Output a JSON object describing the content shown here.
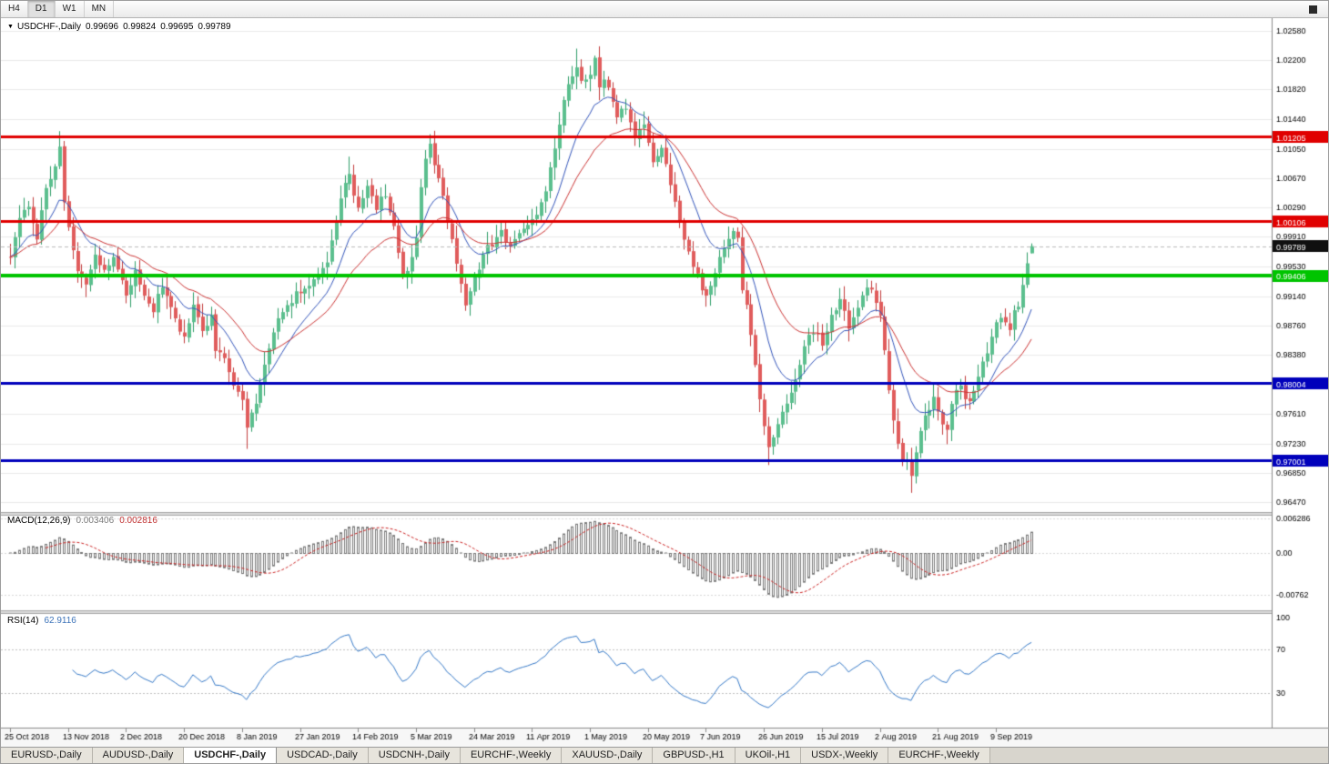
{
  "toolbar": {
    "timeframes": [
      {
        "label": "H4",
        "active": false
      },
      {
        "label": "D1",
        "active": true
      },
      {
        "label": "W1",
        "active": false
      },
      {
        "label": "MN",
        "active": false
      }
    ]
  },
  "chart": {
    "title": {
      "dropdown_icon": "▼",
      "symbol": "USDCHF-,Daily",
      "open": "0.99696",
      "high": "0.99824",
      "low": "0.99695",
      "close": "0.99789"
    }
  },
  "indicators": {
    "macd": {
      "name": "MACD(12,26,9)",
      "main_value": "0.003406",
      "signal_value": "0.002816"
    },
    "rsi": {
      "name": "RSI(14)",
      "value": "62.9116"
    }
  },
  "tabs": {
    "items": [
      {
        "label": "EURUSD-,Daily",
        "active": false
      },
      {
        "label": "AUDUSD-,Daily",
        "active": false
      },
      {
        "label": "USDCHF-,Daily",
        "active": true
      },
      {
        "label": "USDCAD-,Daily",
        "active": false
      },
      {
        "label": "USDCNH-,Daily",
        "active": false
      },
      {
        "label": "EURCHF-,Weekly",
        "active": false
      },
      {
        "label": "XAUUSD-,Daily",
        "active": false
      },
      {
        "label": "GBPUSD-,H1",
        "active": false
      },
      {
        "label": "UKOil-,H1",
        "active": false
      },
      {
        "label": "USDX-,Weekly",
        "active": false
      },
      {
        "label": "EURCHF-,Weekly",
        "active": false
      }
    ]
  },
  "chart_data": {
    "type": "candlestick",
    "symbol": "USDCHF",
    "period": "Daily",
    "price_axis": {
      "top_price": 1.0258,
      "bottom_price": 0.9647,
      "ticks": [
        {
          "p": 1.0258,
          "label": "1.02580"
        },
        {
          "p": 1.022,
          "label": "1.02200"
        },
        {
          "p": 1.0182,
          "label": "1.01820"
        },
        {
          "p": 1.0144,
          "label": "1.01440"
        },
        {
          "p": 1.0105,
          "label": "1.01050"
        },
        {
          "p": 1.0067,
          "label": "1.00670"
        },
        {
          "p": 1.0029,
          "label": "1.00290"
        },
        {
          "p": 0.9991,
          "label": "0.99910"
        },
        {
          "p": 0.9953,
          "label": "0.99530"
        },
        {
          "p": 0.9914,
          "label": "0.99140"
        },
        {
          "p": 0.9876,
          "label": "0.98760"
        },
        {
          "p": 0.9838,
          "label": "0.98380"
        },
        {
          "p": 0.9761,
          "label": "0.97610"
        },
        {
          "p": 0.9723,
          "label": "0.97230"
        },
        {
          "p": 0.9685,
          "label": "0.96850"
        },
        {
          "p": 0.9647,
          "label": "0.96470"
        }
      ]
    },
    "date_axis": [
      {
        "i": 0,
        "label": "25 Oct 2018"
      },
      {
        "i": 13,
        "label": "13 Nov 2018"
      },
      {
        "i": 26,
        "label": "2 Dec 2018"
      },
      {
        "i": 39,
        "label": "20 Dec 2018"
      },
      {
        "i": 52,
        "label": "8 Jan 2019"
      },
      {
        "i": 65,
        "label": "27 Jan 2019"
      },
      {
        "i": 78,
        "label": "14 Feb 2019"
      },
      {
        "i": 91,
        "label": "5 Mar 2019"
      },
      {
        "i": 104,
        "label": "24 Mar 2019"
      },
      {
        "i": 117,
        "label": "11 Apr 2019"
      },
      {
        "i": 130,
        "label": "1 May 2019"
      },
      {
        "i": 143,
        "label": "20 May 2019"
      },
      {
        "i": 156,
        "label": "7 Jun 2019"
      },
      {
        "i": 169,
        "label": "26 Jun 2019"
      },
      {
        "i": 182,
        "label": "15 Jul 2019"
      },
      {
        "i": 195,
        "label": "2 Aug 2019"
      },
      {
        "i": 208,
        "label": "21 Aug 2019"
      },
      {
        "i": 221,
        "label": "9 Sep 2019"
      }
    ],
    "levels": [
      {
        "price": 1.01205,
        "label": "1.01205",
        "color": "#e00000",
        "width": 3
      },
      {
        "price": 1.00106,
        "label": "1.00106",
        "color": "#e00000",
        "width": 3
      },
      {
        "price": 0.99406,
        "label": "0.99406",
        "color": "#00c400",
        "width": 4
      },
      {
        "price": 0.98004,
        "label": "0.98004",
        "color": "#0000bb",
        "width": 3
      },
      {
        "price": 0.97001,
        "label": "0.97001",
        "color": "#0000bb",
        "width": 3
      }
    ],
    "current_price": {
      "value": 0.99789,
      "label": "0.99789"
    },
    "candles": {
      "count": 230,
      "last": {
        "open": 0.99696,
        "high": 0.99824,
        "low": 0.99695,
        "close": 0.99789
      },
      "wick_overrides": {
        "11": {
          "h": 1.0128
        },
        "53": {
          "l": 0.9716
        },
        "76": {
          "h": 1.0095
        },
        "94": {
          "h": 1.0124
        },
        "102": {
          "l": 0.9895
        },
        "127": {
          "h": 1.0235
        },
        "131": {
          "h": 1.0226
        },
        "170": {
          "l": 0.9695
        },
        "202": {
          "l": 0.9659
        },
        "210": {
          "l": 0.9722
        }
      },
      "anchors": [
        [
          0,
          0.9965
        ],
        [
          2,
          1.001
        ],
        [
          4,
          1.0035
        ],
        [
          6,
          0.999
        ],
        [
          8,
          1.005
        ],
        [
          10,
          1.008
        ],
        [
          11,
          1.0105
        ],
        [
          12,
          1.004
        ],
        [
          13,
          1.0
        ],
        [
          15,
          0.995
        ],
        [
          17,
          0.993
        ],
        [
          19,
          0.9965
        ],
        [
          21,
          0.9945
        ],
        [
          23,
          0.997
        ],
        [
          25,
          0.9935
        ],
        [
          26,
          0.9915
        ],
        [
          28,
          0.9945
        ],
        [
          30,
          0.991
        ],
        [
          32,
          0.9895
        ],
        [
          34,
          0.993
        ],
        [
          36,
          0.99
        ],
        [
          38,
          0.987
        ],
        [
          39,
          0.9865
        ],
        [
          41,
          0.99
        ],
        [
          43,
          0.987
        ],
        [
          45,
          0.989
        ],
        [
          46,
          0.9845
        ],
        [
          48,
          0.9835
        ],
        [
          50,
          0.98
        ],
        [
          52,
          0.978
        ],
        [
          53,
          0.9745
        ],
        [
          54,
          0.976
        ],
        [
          56,
          0.98
        ],
        [
          58,
          0.985
        ],
        [
          60,
          0.9885
        ],
        [
          62,
          0.99
        ],
        [
          64,
          0.9915
        ],
        [
          65,
          0.992
        ],
        [
          67,
          0.993
        ],
        [
          69,
          0.9945
        ],
        [
          71,
          0.996
        ],
        [
          72,
          0.999
        ],
        [
          73,
          1.0015
        ],
        [
          74,
          1.004
        ],
        [
          75,
          1.006
        ],
        [
          76,
          1.007
        ],
        [
          77,
          1.0045
        ],
        [
          78,
          1.0025
        ],
        [
          79,
          1.004
        ],
        [
          80,
          1.0055
        ],
        [
          81,
          1.004
        ],
        [
          82,
          1.003
        ],
        [
          83,
          1.0045
        ],
        [
          84,
          1.004
        ],
        [
          85,
          1.0025
        ],
        [
          86,
          1.0005
        ],
        [
          87,
          0.9975
        ],
        [
          88,
          0.994
        ],
        [
          89,
          0.995
        ],
        [
          90,
          0.996
        ],
        [
          91,
          0.9985
        ],
        [
          92,
          1.005
        ],
        [
          93,
          1.009
        ],
        [
          94,
          1.0115
        ],
        [
          95,
          1.0085
        ],
        [
          96,
          1.007
        ],
        [
          97,
          1.004
        ],
        [
          98,
          1.001
        ],
        [
          99,
          0.9985
        ],
        [
          100,
          0.996
        ],
        [
          101,
          0.993
        ],
        [
          102,
          0.9905
        ],
        [
          103,
          0.992
        ],
        [
          104,
          0.9935
        ],
        [
          105,
          0.995
        ],
        [
          106,
          0.9965
        ],
        [
          107,
          0.9975
        ],
        [
          109,
          0.999
        ],
        [
          110,
          0.9995
        ],
        [
          112,
          0.998
        ],
        [
          114,
          0.9995
        ],
        [
          116,
          1.001
        ],
        [
          118,
          1.0025
        ],
        [
          119,
          1.0035
        ],
        [
          120,
          1.0055
        ],
        [
          121,
          1.008
        ],
        [
          122,
          1.011
        ],
        [
          123,
          1.014
        ],
        [
          124,
          1.0165
        ],
        [
          125,
          1.0185
        ],
        [
          126,
          1.02
        ],
        [
          127,
          1.0215
        ],
        [
          128,
          1.019
        ],
        [
          129,
          1.02
        ],
        [
          130,
          1.0205
        ],
        [
          131,
          1.022
        ],
        [
          132,
          1.018
        ],
        [
          133,
          1.0195
        ],
        [
          134,
          1.019
        ],
        [
          135,
          1.017
        ],
        [
          136,
          1.0145
        ],
        [
          137,
          1.0155
        ],
        [
          138,
          1.016
        ],
        [
          139,
          1.014
        ],
        [
          140,
          1.012
        ],
        [
          141,
          1.013
        ],
        [
          142,
          1.0135
        ],
        [
          143,
          1.011
        ],
        [
          144,
          1.009
        ],
        [
          145,
          1.01
        ],
        [
          146,
          1.0105
        ],
        [
          147,
          1.008
        ],
        [
          148,
          1.006
        ],
        [
          149,
          1.0035
        ],
        [
          150,
          1.001
        ],
        [
          151,
          0.999
        ],
        [
          152,
          0.9975
        ],
        [
          153,
          0.9955
        ],
        [
          154,
          0.994
        ],
        [
          155,
          0.9925
        ],
        [
          156,
          0.991
        ],
        [
          157,
          0.9925
        ],
        [
          158,
          0.9945
        ],
        [
          159,
          0.996
        ],
        [
          160,
          0.9975
        ],
        [
          161,
          0.999
        ],
        [
          162,
          1.0
        ],
        [
          163,
          0.9985
        ],
        [
          164,
          0.992
        ],
        [
          165,
          0.99
        ],
        [
          166,
          0.986
        ],
        [
          167,
          0.982
        ],
        [
          168,
          0.9785
        ],
        [
          169,
          0.975
        ],
        [
          170,
          0.9718
        ],
        [
          171,
          0.973
        ],
        [
          172,
          0.9745
        ],
        [
          173,
          0.976
        ],
        [
          174,
          0.9775
        ],
        [
          175,
          0.979
        ],
        [
          176,
          0.981
        ],
        [
          177,
          0.9825
        ],
        [
          178,
          0.9845
        ],
        [
          179,
          0.986
        ],
        [
          180,
          0.987
        ],
        [
          181,
          0.9865
        ],
        [
          182,
          0.9855
        ],
        [
          183,
          0.987
        ],
        [
          184,
          0.9885
        ],
        [
          185,
          0.9895
        ],
        [
          186,
          0.9905
        ],
        [
          187,
          0.989
        ],
        [
          188,
          0.987
        ],
        [
          189,
          0.9885
        ],
        [
          190,
          0.99
        ],
        [
          191,
          0.992
        ],
        [
          192,
          0.993
        ],
        [
          193,
          0.9925
        ],
        [
          194,
          0.991
        ],
        [
          195,
          0.989
        ],
        [
          196,
          0.9845
        ],
        [
          197,
          0.979
        ],
        [
          198,
          0.975
        ],
        [
          199,
          0.972
        ],
        [
          200,
          0.9705
        ],
        [
          201,
          0.9698
        ],
        [
          202,
          0.968
        ],
        [
          203,
          0.9715
        ],
        [
          204,
          0.9735
        ],
        [
          205,
          0.9755
        ],
        [
          206,
          0.977
        ],
        [
          207,
          0.978
        ],
        [
          208,
          0.976
        ],
        [
          209,
          0.9745
        ],
        [
          210,
          0.974
        ],
        [
          211,
          0.977
        ],
        [
          212,
          0.979
        ],
        [
          213,
          0.98
        ],
        [
          214,
          0.9785
        ],
        [
          215,
          0.9775
        ],
        [
          216,
          0.9795
        ],
        [
          217,
          0.981
        ],
        [
          218,
          0.983
        ],
        [
          219,
          0.9845
        ],
        [
          220,
          0.9865
        ],
        [
          221,
          0.988
        ],
        [
          222,
          0.989
        ],
        [
          223,
          0.9875
        ],
        [
          224,
          0.987
        ],
        [
          225,
          0.9895
        ],
        [
          226,
          0.9905
        ],
        [
          227,
          0.993
        ],
        [
          228,
          0.9962
        ],
        [
          229,
          0.99789
        ]
      ]
    },
    "moving_averages": [
      {
        "period": 12,
        "type": "ema",
        "color": "#3355bb"
      },
      {
        "period": 26,
        "type": "ema",
        "color": "#cc3333"
      }
    ],
    "macd": {
      "params": [
        12,
        26,
        9
      ],
      "axis_labels": [
        "0.006286",
        "0.00",
        "-0.00762"
      ],
      "axis_values": [
        0.006286,
        0,
        -0.00762
      ],
      "histogram_color": "#7a7a7a",
      "signal_color": "#cc2222"
    },
    "rsi": {
      "period": 14,
      "levels": [
        100,
        70,
        30
      ],
      "line_color": "#3579c8",
      "current": 62.9116
    },
    "colors": {
      "bull": "#5bbf8e",
      "bull_border": "#2e9e68",
      "bear": "#e05c5c",
      "bear_border": "#c23b3b",
      "grid": "#eaeaea"
    }
  }
}
